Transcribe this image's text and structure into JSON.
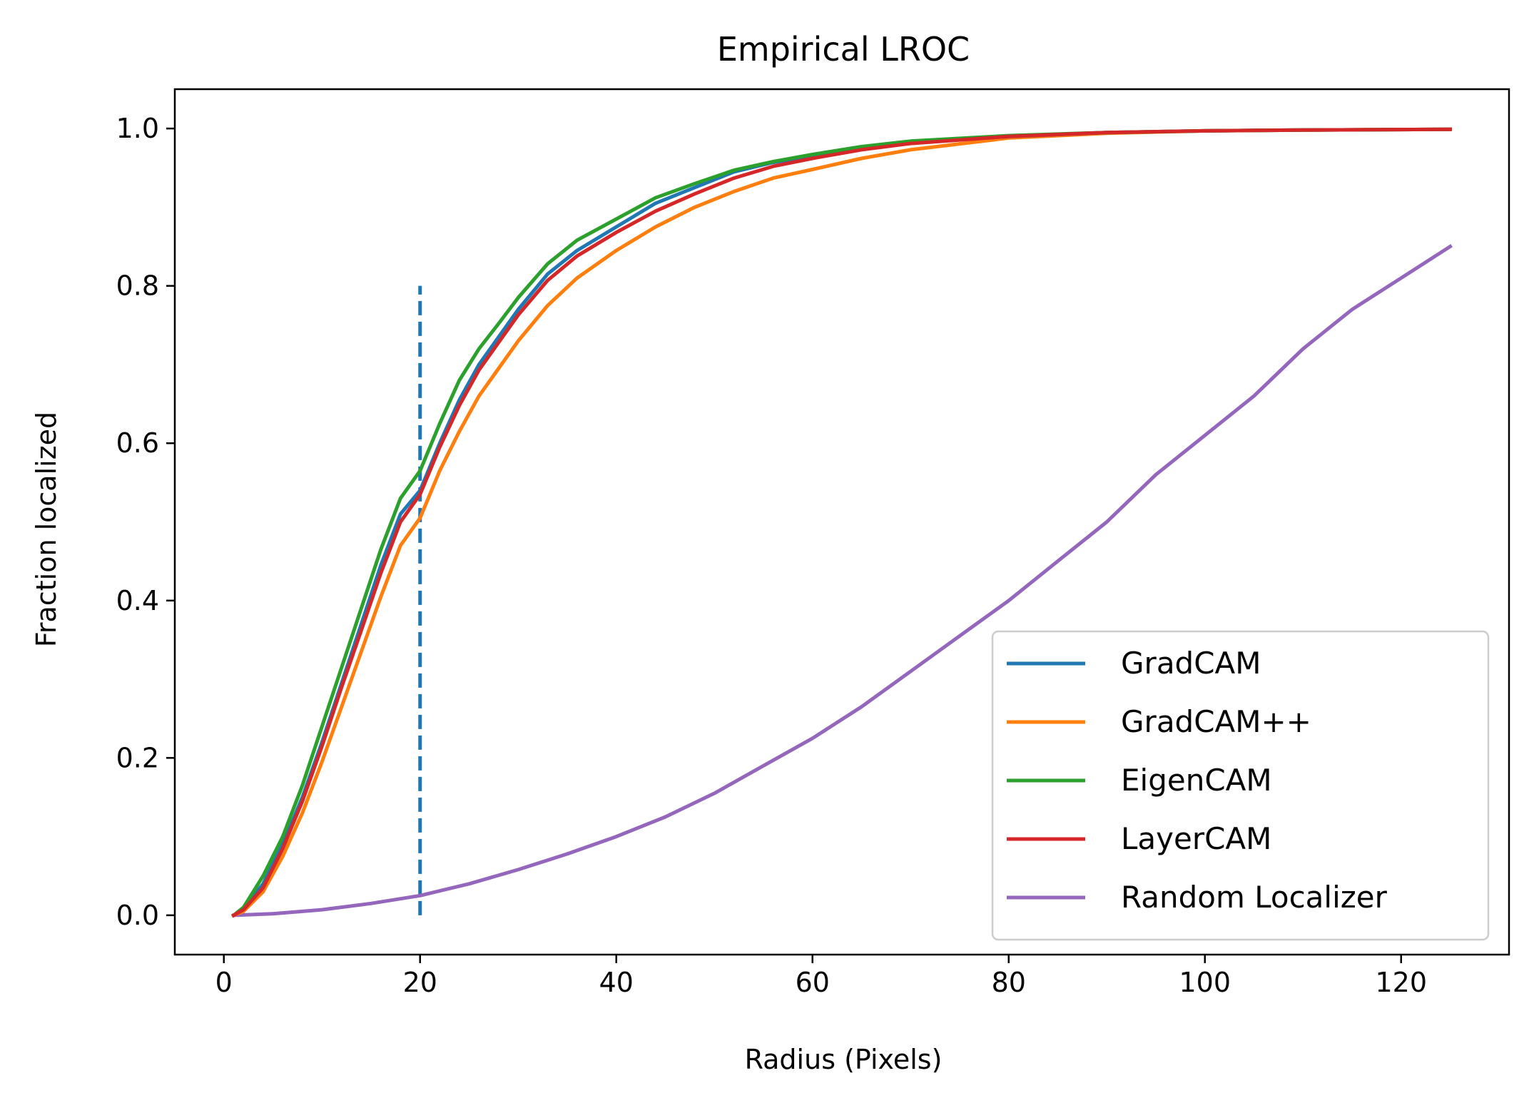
{
  "chart_data": {
    "type": "line",
    "title": "Empirical LROC",
    "xlabel": "Radius (Pixels)",
    "ylabel": "Fraction localized",
    "xlim": [
      -5,
      131
    ],
    "ylim": [
      -0.05,
      1.05
    ],
    "xticks": [
      0,
      20,
      40,
      60,
      80,
      100,
      120
    ],
    "xtick_labels": [
      "0",
      "20",
      "40",
      "60",
      "80",
      "100",
      "120"
    ],
    "yticks": [
      0.0,
      0.2,
      0.4,
      0.6,
      0.8,
      1.0
    ],
    "ytick_labels": [
      "0.0",
      "0.2",
      "0.4",
      "0.6",
      "0.8",
      "1.0"
    ],
    "grid": false,
    "legend_position": "lower-right",
    "series": [
      {
        "name": "GradCAM",
        "color": "#1f77b4",
        "x": [
          1,
          2,
          4,
          6,
          8,
          10,
          12,
          14,
          16,
          18,
          20,
          22,
          24,
          26,
          28,
          30,
          33,
          36,
          40,
          44,
          48,
          52,
          56,
          60,
          65,
          70,
          80,
          90,
          100,
          110,
          125
        ],
        "y": [
          0.0,
          0.008,
          0.04,
          0.09,
          0.15,
          0.22,
          0.295,
          0.37,
          0.445,
          0.51,
          0.54,
          0.6,
          0.655,
          0.7,
          0.735,
          0.77,
          0.815,
          0.845,
          0.875,
          0.905,
          0.925,
          0.945,
          0.957,
          0.965,
          0.975,
          0.982,
          0.99,
          0.995,
          0.997,
          0.998,
          0.999
        ]
      },
      {
        "name": "GradCAM++",
        "color": "#ff7f0e",
        "x": [
          1,
          2,
          4,
          6,
          8,
          10,
          12,
          14,
          16,
          18,
          20,
          22,
          24,
          26,
          28,
          30,
          33,
          36,
          40,
          44,
          48,
          52,
          56,
          60,
          65,
          70,
          80,
          90,
          100,
          110,
          125
        ],
        "y": [
          0.0,
          0.005,
          0.03,
          0.075,
          0.13,
          0.195,
          0.265,
          0.335,
          0.405,
          0.47,
          0.505,
          0.565,
          0.615,
          0.66,
          0.695,
          0.73,
          0.775,
          0.81,
          0.845,
          0.875,
          0.9,
          0.92,
          0.937,
          0.948,
          0.962,
          0.973,
          0.988,
          0.994,
          0.997,
          0.998,
          0.999
        ]
      },
      {
        "name": "EigenCAM",
        "color": "#2ca02c",
        "x": [
          1,
          2,
          4,
          6,
          8,
          10,
          12,
          14,
          16,
          18,
          20,
          22,
          24,
          26,
          28,
          30,
          33,
          36,
          40,
          44,
          48,
          52,
          56,
          60,
          65,
          70,
          80,
          90,
          100,
          110,
          125
        ],
        "y": [
          0.0,
          0.01,
          0.05,
          0.1,
          0.165,
          0.24,
          0.315,
          0.39,
          0.465,
          0.53,
          0.565,
          0.625,
          0.68,
          0.72,
          0.752,
          0.785,
          0.828,
          0.858,
          0.885,
          0.912,
          0.93,
          0.947,
          0.958,
          0.967,
          0.977,
          0.984,
          0.991,
          0.995,
          0.997,
          0.998,
          0.999
        ]
      },
      {
        "name": "LayerCAM",
        "color": "#d62728",
        "x": [
          1,
          2,
          4,
          6,
          8,
          10,
          12,
          14,
          16,
          18,
          20,
          22,
          24,
          26,
          28,
          30,
          33,
          36,
          40,
          44,
          48,
          52,
          56,
          60,
          65,
          70,
          80,
          90,
          100,
          110,
          125
        ],
        "y": [
          0.0,
          0.007,
          0.035,
          0.085,
          0.145,
          0.215,
          0.29,
          0.362,
          0.435,
          0.5,
          0.535,
          0.595,
          0.648,
          0.693,
          0.728,
          0.763,
          0.807,
          0.838,
          0.868,
          0.895,
          0.917,
          0.937,
          0.952,
          0.962,
          0.973,
          0.981,
          0.99,
          0.995,
          0.997,
          0.998,
          0.999
        ]
      },
      {
        "name": "Random Localizer",
        "color": "#9467bd",
        "x": [
          1,
          5,
          10,
          15,
          20,
          25,
          30,
          35,
          40,
          45,
          50,
          55,
          60,
          65,
          70,
          75,
          80,
          85,
          90,
          95,
          100,
          105,
          110,
          115,
          120,
          125
        ],
        "y": [
          0.0,
          0.002,
          0.007,
          0.015,
          0.025,
          0.04,
          0.058,
          0.078,
          0.1,
          0.125,
          0.155,
          0.19,
          0.225,
          0.265,
          0.31,
          0.355,
          0.4,
          0.45,
          0.5,
          0.56,
          0.61,
          0.66,
          0.72,
          0.77,
          0.81,
          0.85
        ]
      }
    ],
    "reference_line": {
      "x": 20,
      "y_range": [
        0.0,
        0.8
      ],
      "color": "#1f77b4",
      "style": "dashed"
    }
  }
}
